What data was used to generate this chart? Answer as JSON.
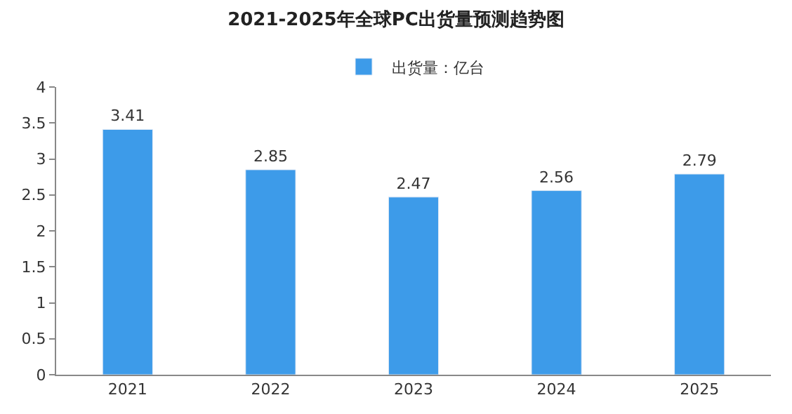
{
  "chart_data": {
    "type": "bar",
    "title": "2021-2025年全球PC出货量预测趋势图",
    "categories": [
      "2021",
      "2022",
      "2023",
      "2024",
      "2025"
    ],
    "series": [
      {
        "name": "出货量：亿台",
        "color": "#3d9be9",
        "values": [
          3.41,
          2.85,
          2.47,
          2.56,
          2.79
        ]
      }
    ],
    "ylim": [
      0,
      4
    ],
    "yticks": [
      0,
      0.5,
      1,
      1.5,
      2,
      2.5,
      3,
      3.5,
      4
    ],
    "data_labels": true,
    "legend": "top",
    "grid": false
  }
}
